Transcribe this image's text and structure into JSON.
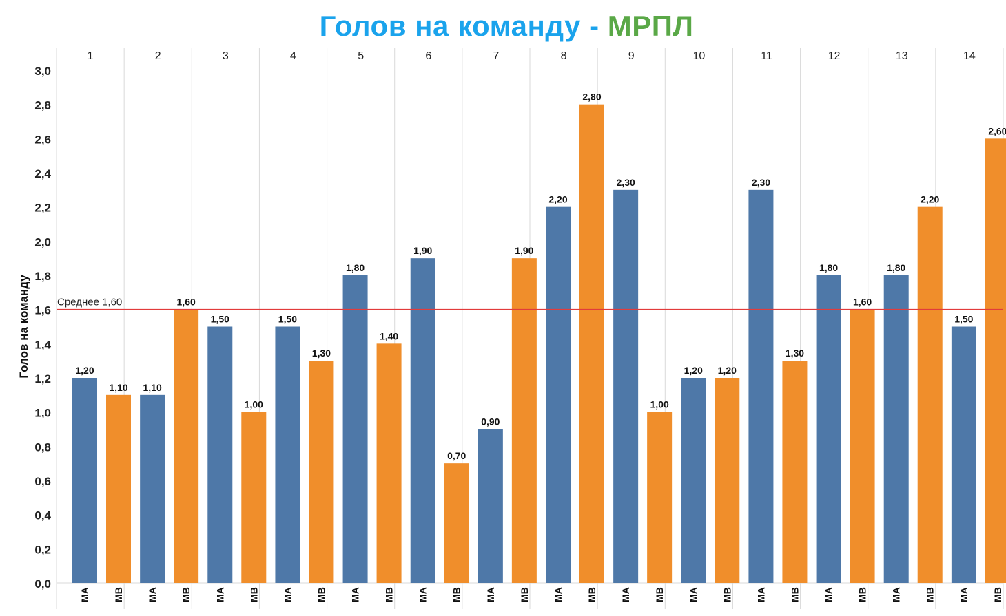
{
  "title": {
    "main": "Голов на команду - ",
    "accent": "МРПЛ"
  },
  "colors": {
    "title_main": "#1aa3ec",
    "title_accent": "#5aa847",
    "ma": "#4e78a8",
    "mb": "#f08e2b",
    "average_line": "#e23b3b",
    "grid": "#d9d9d9"
  },
  "chart_data": {
    "type": "bar",
    "title": "Голов на команду - МРПЛ",
    "ylabel": "Голов на команду",
    "xlabel": "",
    "ylim": [
      0,
      3.0
    ],
    "yticks": [
      "0,0",
      "0,2",
      "0,4",
      "0,6",
      "0,8",
      "1,0",
      "1,2",
      "1,4",
      "1,6",
      "1,8",
      "2,0",
      "2,2",
      "2,4",
      "2,6",
      "2,8",
      "3,0"
    ],
    "groups": [
      "1",
      "2",
      "3",
      "4",
      "5",
      "6",
      "7",
      "8",
      "9",
      "10",
      "11",
      "12",
      "13",
      "14"
    ],
    "subcategories": [
      "МА",
      "МВ"
    ],
    "series": [
      {
        "key": "ma",
        "values": [
          1.2,
          1.1,
          1.5,
          1.5,
          1.8,
          1.9,
          0.9,
          2.2,
          2.3,
          1.2,
          2.3,
          1.8,
          1.8,
          1.5
        ],
        "labels": [
          "1,20",
          "1,10",
          "1,50",
          "1,50",
          "1,80",
          "1,90",
          "0,90",
          "2,20",
          "2,30",
          "1,20",
          "2,30",
          "1,80",
          "1,80",
          "1,50"
        ]
      },
      {
        "key": "mb",
        "values": [
          1.1,
          1.6,
          1.0,
          1.3,
          1.4,
          0.7,
          1.9,
          2.8,
          1.0,
          1.2,
          1.3,
          1.6,
          2.2,
          2.6
        ],
        "labels": [
          "1,10",
          "1,60",
          "1,00",
          "1,30",
          "1,40",
          "0,70",
          "1,90",
          "2,80",
          "1,00",
          "1,20",
          "1,30",
          "1,60",
          "2,20",
          "2,60"
        ]
      }
    ],
    "reference_line": {
      "value": 1.6,
      "label": "Среднее 1,60"
    },
    "grid": false,
    "legend": "none"
  }
}
